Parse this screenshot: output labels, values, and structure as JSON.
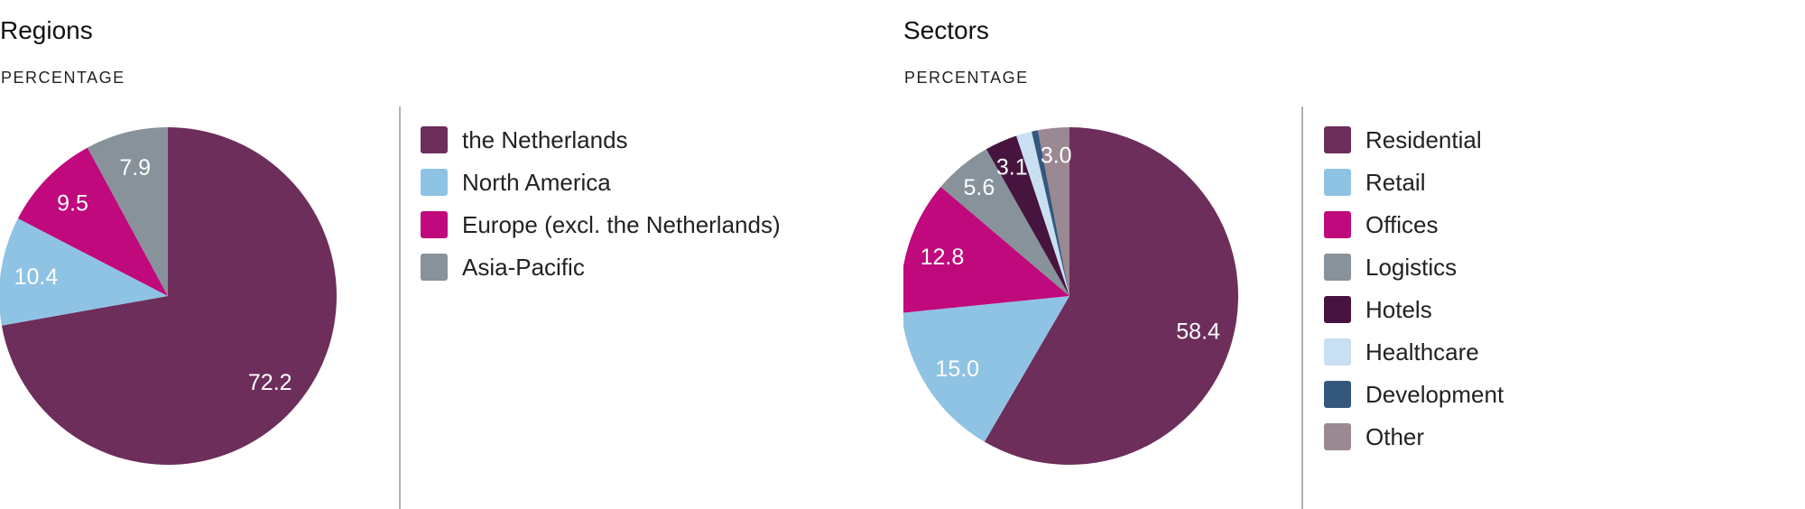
{
  "chart_data": [
    {
      "type": "pie",
      "title": "Regions",
      "subtitle": "PERCENTAGE",
      "legend_placement": "right",
      "slices": [
        {
          "label": "the Netherlands",
          "value": 72.2,
          "value_label": "72.2",
          "color": "#6d2e5b"
        },
        {
          "label": "North America",
          "value": 10.4,
          "value_label": "10.4",
          "color": "#8fc3e4"
        },
        {
          "label": "Europe (excl. the Netherlands)",
          "value": 9.5,
          "value_label": "9.5",
          "color": "#c0097c"
        },
        {
          "label": "Asia-Pacific",
          "value": 7.9,
          "value_label": "7.9",
          "color": "#87929a"
        }
      ]
    },
    {
      "type": "pie",
      "title": "Sectors",
      "subtitle": "PERCENTAGE",
      "legend_placement": "right",
      "slices": [
        {
          "label": "Residential",
          "value": 58.4,
          "value_label": "58.4",
          "color": "#6d2e5b"
        },
        {
          "label": "Retail",
          "value": 15.0,
          "value_label": "15.0",
          "color": "#8fc3e4"
        },
        {
          "label": "Offices",
          "value": 12.8,
          "value_label": "12.8",
          "color": "#c0097c"
        },
        {
          "label": "Logistics",
          "value": 5.6,
          "value_label": "5.6",
          "color": "#87929a"
        },
        {
          "label": "Hotels",
          "value": 3.1,
          "value_label": "3.1",
          "color": "#46143f"
        },
        {
          "label": "Healthcare",
          "value": 1.5,
          "value_label": "",
          "color": "#c9dff2"
        },
        {
          "label": "Development",
          "value": 0.6,
          "value_label": "",
          "color": "#33587c"
        },
        {
          "label": "Other",
          "value": 3.0,
          "value_label": "3.0",
          "color": "#9a8892"
        }
      ]
    }
  ]
}
